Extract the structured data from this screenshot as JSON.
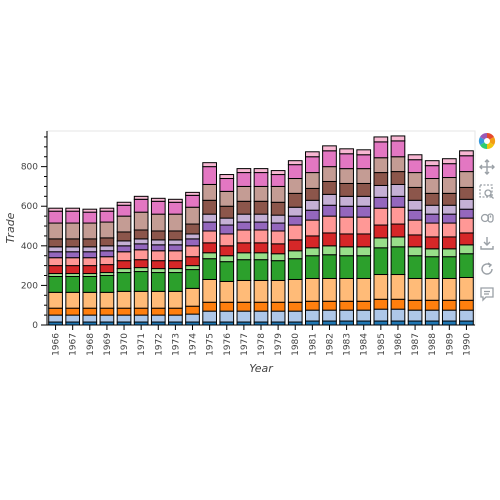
{
  "chart_data": {
    "type": "bar",
    "stacked": true,
    "xlabel": "Year",
    "ylabel": "Trade",
    "ylim": [
      0,
      980
    ],
    "yticks": [
      0,
      200,
      400,
      600,
      800
    ],
    "categories": [
      "1966",
      "1967",
      "1968",
      "1969",
      "1970",
      "1971",
      "1972",
      "1973",
      "1974",
      "1975",
      "1976",
      "1977",
      "1978",
      "1979",
      "1980",
      "1981",
      "1982",
      "1983",
      "1984",
      "1985",
      "1986",
      "1987",
      "1988",
      "1989",
      "1990"
    ],
    "colors": [
      "#1f77b4",
      "#aec7e8",
      "#ff7f0e",
      "#ffbb78",
      "#2ca02c",
      "#98df8a",
      "#d62728",
      "#ff9896",
      "#9467bd",
      "#c5b0d5",
      "#8c564b",
      "#c49c94",
      "#e377c2",
      "#f7b6d2"
    ],
    "series": [
      {
        "values": [
          15,
          15,
          15,
          15,
          15,
          15,
          15,
          15,
          15,
          15,
          15,
          15,
          15,
          15,
          15,
          20,
          20,
          20,
          20,
          20,
          20,
          20,
          20,
          20,
          20
        ]
      },
      {
        "values": [
          35,
          35,
          35,
          35,
          35,
          35,
          35,
          35,
          40,
          55,
          55,
          55,
          55,
          55,
          55,
          55,
          55,
          55,
          55,
          60,
          60,
          55,
          55,
          55,
          55
        ]
      },
      {
        "values": [
          35,
          35,
          35,
          35,
          35,
          35,
          35,
          35,
          40,
          45,
          45,
          45,
          45,
          45,
          45,
          45,
          45,
          45,
          45,
          50,
          50,
          50,
          50,
          50,
          50
        ]
      },
      {
        "values": [
          80,
          80,
          80,
          80,
          85,
          85,
          85,
          85,
          90,
          115,
          105,
          110,
          110,
          110,
          115,
          115,
          115,
          115,
          115,
          125,
          125,
          110,
          110,
          110,
          115
        ]
      },
      {
        "values": [
          80,
          80,
          80,
          85,
          95,
          100,
          95,
          95,
          95,
          105,
          100,
          105,
          105,
          100,
          105,
          115,
          120,
          115,
          115,
          135,
          140,
          115,
          110,
          110,
          120
        ]
      },
      {
        "values": [
          15,
          15,
          15,
          15,
          20,
          20,
          20,
          20,
          20,
          30,
          30,
          35,
          35,
          35,
          40,
          40,
          45,
          45,
          45,
          50,
          50,
          45,
          40,
          40,
          45
        ]
      },
      {
        "values": [
          40,
          40,
          40,
          40,
          40,
          40,
          40,
          40,
          45,
          50,
          50,
          50,
          50,
          50,
          55,
          60,
          65,
          65,
          65,
          65,
          65,
          60,
          60,
          60,
          60
        ]
      },
      {
        "values": [
          40,
          40,
          40,
          40,
          45,
          50,
          50,
          50,
          55,
          60,
          60,
          65,
          65,
          65,
          75,
          80,
          85,
          85,
          85,
          85,
          85,
          75,
          70,
          70,
          75
        ]
      },
      {
        "values": [
          30,
          30,
          30,
          30,
          30,
          30,
          30,
          30,
          35,
          45,
          45,
          40,
          40,
          40,
          45,
          50,
          55,
          55,
          55,
          55,
          55,
          50,
          45,
          45,
          45
        ]
      },
      {
        "values": [
          25,
          25,
          25,
          25,
          25,
          25,
          25,
          25,
          25,
          40,
          35,
          40,
          40,
          40,
          45,
          50,
          55,
          50,
          50,
          60,
          60,
          50,
          45,
          45,
          50
        ]
      },
      {
        "values": [
          40,
          40,
          40,
          40,
          45,
          45,
          45,
          45,
          50,
          70,
          60,
          65,
          65,
          65,
          70,
          60,
          65,
          65,
          65,
          65,
          65,
          65,
          60,
          60,
          60
        ]
      },
      {
        "values": [
          80,
          80,
          80,
          80,
          80,
          90,
          85,
          85,
          85,
          80,
          75,
          75,
          75,
          80,
          75,
          80,
          75,
          75,
          75,
          75,
          75,
          75,
          75,
          80,
          80
        ]
      },
      {
        "values": [
          60,
          60,
          55,
          55,
          55,
          65,
          65,
          60,
          60,
          90,
          65,
          70,
          70,
          60,
          70,
          80,
          80,
          75,
          70,
          80,
          80,
          65,
          65,
          70,
          80
        ]
      },
      {
        "values": [
          15,
          15,
          15,
          15,
          15,
          15,
          15,
          15,
          15,
          20,
          20,
          20,
          20,
          20,
          20,
          25,
          25,
          25,
          25,
          25,
          25,
          25,
          25,
          25,
          25
        ]
      }
    ]
  },
  "toolbar": {
    "tools": [
      {
        "name": "bokeh-logo-icon"
      },
      {
        "name": "pan-icon"
      },
      {
        "name": "box-zoom-icon"
      },
      {
        "name": "wheel-zoom-icon"
      },
      {
        "name": "save-icon"
      },
      {
        "name": "reset-icon"
      },
      {
        "name": "hover-icon"
      }
    ]
  }
}
